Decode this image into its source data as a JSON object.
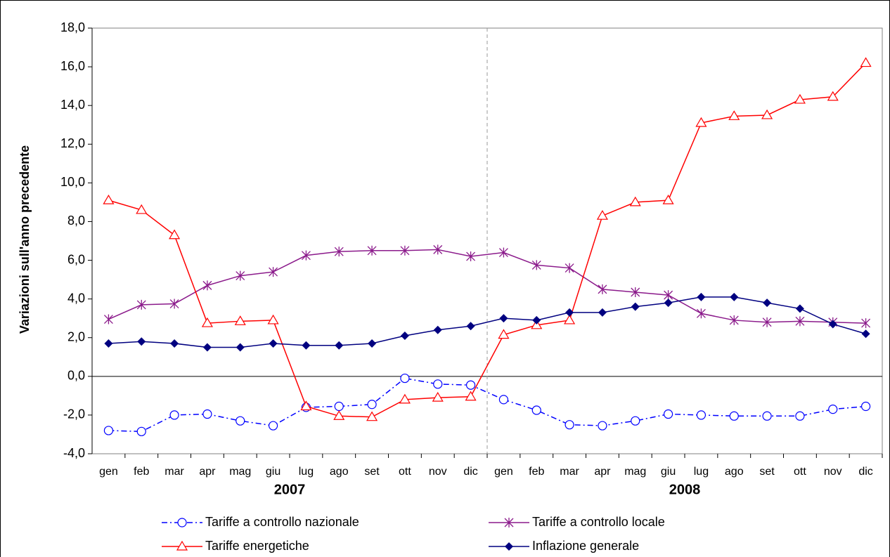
{
  "chart_data": {
    "type": "line",
    "y_label": "Variazioni sull'anno precedente",
    "categories": [
      "gen",
      "feb",
      "mar",
      "apr",
      "mag",
      "giu",
      "lug",
      "ago",
      "set",
      "ott",
      "nov",
      "dic",
      "gen",
      "feb",
      "mar",
      "apr",
      "mag",
      "giu",
      "lug",
      "ago",
      "set",
      "ott",
      "nov",
      "dic"
    ],
    "groups": [
      "2007",
      "2008"
    ],
    "ylim": [
      -4,
      18
    ],
    "yticks": [
      {
        "value": -4,
        "label": "-4,0"
      },
      {
        "value": -2,
        "label": "-2,0"
      },
      {
        "value": 0,
        "label": "0,0"
      },
      {
        "value": 2,
        "label": "2,0"
      },
      {
        "value": 4,
        "label": "4,0"
      },
      {
        "value": 6,
        "label": "6,0"
      },
      {
        "value": 8,
        "label": "8,0"
      },
      {
        "value": 10,
        "label": "10,0"
      },
      {
        "value": 12,
        "label": "12,0"
      },
      {
        "value": 14,
        "label": "14,0"
      },
      {
        "value": 16,
        "label": "16,0"
      },
      {
        "value": 18,
        "label": "18,0"
      }
    ],
    "series": [
      {
        "name": "Tariffe a controllo nazionale",
        "color": "#0000ff",
        "marker": "circle",
        "dash": "dashdot",
        "values": [
          -2.8,
          -2.85,
          -2.0,
          -1.95,
          -2.3,
          -2.55,
          -1.6,
          -1.55,
          -1.45,
          -0.1,
          -0.4,
          -0.45,
          -1.2,
          -1.75,
          -2.5,
          -2.55,
          -2.3,
          -1.95,
          -2.0,
          -2.05,
          -2.05,
          -2.05,
          -1.7,
          -1.55
        ]
      },
      {
        "name": "Tariffe a controllo locale",
        "color": "#8b1a8b",
        "marker": "star",
        "dash": "solid",
        "values": [
          2.95,
          3.7,
          3.75,
          4.7,
          5.2,
          5.4,
          6.25,
          6.45,
          6.5,
          6.5,
          6.55,
          6.2,
          6.4,
          5.75,
          5.6,
          4.5,
          4.35,
          4.2,
          3.25,
          2.9,
          2.8,
          2.85,
          2.8,
          2.75
        ]
      },
      {
        "name": "Tariffe energetiche",
        "color": "#ff0000",
        "marker": "triangle",
        "dash": "solid",
        "values": [
          9.1,
          8.6,
          7.3,
          2.75,
          2.85,
          2.9,
          -1.55,
          -2.05,
          -2.1,
          -1.2,
          -1.1,
          -1.05,
          2.15,
          2.65,
          2.9,
          8.3,
          9.0,
          9.1,
          13.1,
          13.45,
          13.5,
          14.3,
          14.45,
          16.2
        ]
      },
      {
        "name": "Inflazione generale",
        "color": "#000080",
        "marker": "diamond",
        "dash": "solid",
        "values": [
          1.7,
          1.8,
          1.7,
          1.5,
          1.5,
          1.7,
          1.6,
          1.6,
          1.7,
          2.1,
          2.4,
          2.6,
          3.0,
          2.9,
          3.3,
          3.3,
          3.6,
          3.8,
          4.1,
          4.1,
          3.8,
          3.5,
          2.7,
          2.2
        ]
      }
    ]
  }
}
